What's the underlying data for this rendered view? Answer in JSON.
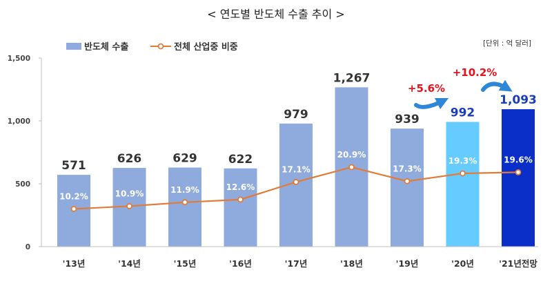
{
  "chart_data": {
    "type": "bar",
    "title": "< 연도별 반도체 수출 추이 >",
    "unit_note": "[단위 : 억 달러]",
    "categories": [
      "'13년",
      "'14년",
      "'15년",
      "'16년",
      "'17년",
      "'18년",
      "'19년",
      "'20년",
      "'21년전망"
    ],
    "ylim": [
      0,
      1500
    ],
    "yticks": [
      "0",
      "500",
      "1,000",
      "1,500"
    ],
    "grid": false,
    "legend_position": "top-left",
    "series": [
      {
        "name": "반도체 수출",
        "type": "bar",
        "values": [
          571,
          626,
          629,
          622,
          979,
          1267,
          939,
          992,
          1093
        ],
        "labels": [
          "571",
          "626",
          "629",
          "622",
          "979",
          "1,267",
          "939",
          "992",
          "1,093"
        ],
        "color": "#8fabdd",
        "highlight_colors": {
          "7": "#66ccff",
          "8": "#0a2fc8"
        },
        "label_colors": {
          "7": "#1a3db8",
          "8": "#1a3db8"
        }
      },
      {
        "name": "전체 산업중 비중",
        "type": "line",
        "values": [
          10.2,
          10.9,
          11.9,
          12.6,
          17.1,
          20.9,
          17.3,
          19.3,
          19.6
        ],
        "labels": [
          "10.2%",
          "10.9%",
          "11.9%",
          "12.6%",
          "17.1%",
          "20.9%",
          "17.3%",
          "19.3%",
          "19.6%"
        ],
        "color": "#e07b39"
      }
    ],
    "annotations": [
      {
        "text": "+5.6%",
        "category_index": 7
      },
      {
        "text": "+10.2%",
        "category_index": 8
      }
    ]
  }
}
